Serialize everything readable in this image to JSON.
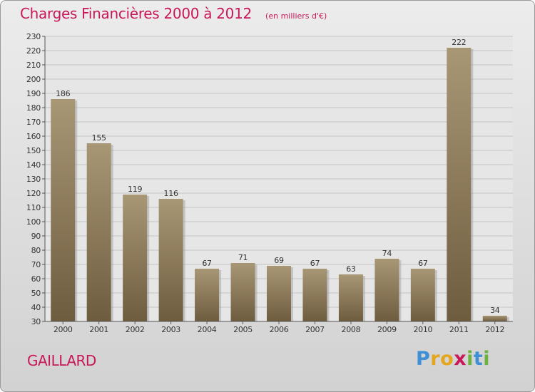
{
  "title": "Charges Financières 2000 à 2012",
  "subtitle": "(en milliers d'€)",
  "commune": "GAILLARD",
  "logo": {
    "text": "Proxiti",
    "letters": [
      "P",
      "r",
      "o",
      "x",
      "i",
      "t",
      "i"
    ],
    "colors": [
      "#3f8fd6",
      "#e5a61f",
      "#e5a61f",
      "#c8185a",
      "#6bb23e",
      "#3f8fd6",
      "#6bb23e"
    ]
  },
  "colors": {
    "accent": "#c8185a",
    "bar_light": "#a89775",
    "bar_dark": "#6e5c3f"
  },
  "chart_data": {
    "type": "bar",
    "categories": [
      "2000",
      "2001",
      "2002",
      "2003",
      "2004",
      "2005",
      "2006",
      "2007",
      "2008",
      "2009",
      "2010",
      "2011",
      "2012"
    ],
    "values": [
      186,
      155,
      119,
      116,
      67,
      71,
      69,
      67,
      63,
      74,
      67,
      222,
      34
    ],
    "data_labels": [
      "186",
      "155",
      "119",
      "116",
      "67",
      "71",
      "69",
      "67",
      "63",
      "74",
      "67",
      "222",
      "34"
    ],
    "yticks": [
      30,
      40,
      50,
      60,
      70,
      80,
      90,
      100,
      110,
      120,
      130,
      140,
      150,
      160,
      170,
      180,
      190,
      200,
      210,
      220,
      230
    ],
    "ylim": [
      30,
      230
    ],
    "grid": true
  }
}
